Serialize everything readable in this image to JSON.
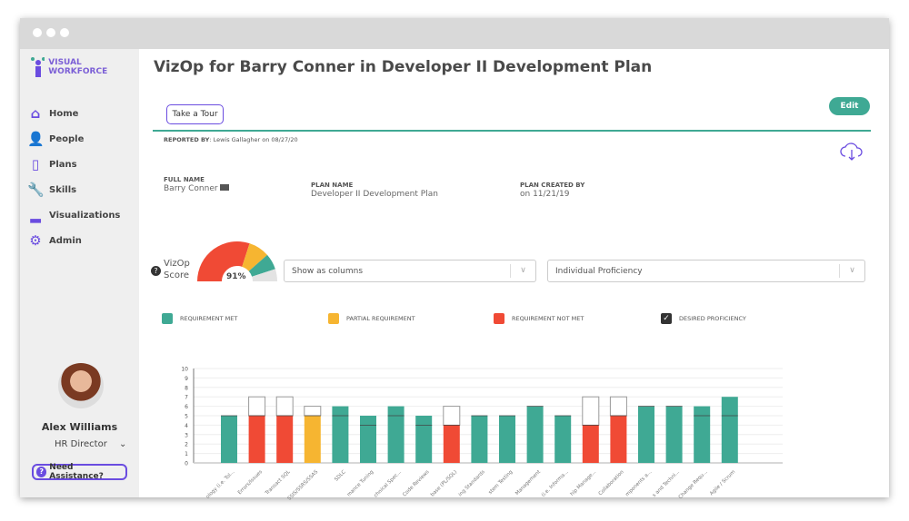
{
  "app": {
    "brand": "VISUAL WORKFORCE"
  },
  "sidebar": {
    "items": [
      {
        "label": "Home",
        "icon": "home-icon"
      },
      {
        "label": "People",
        "icon": "people-icon"
      },
      {
        "label": "Plans",
        "icon": "clipboard-icon"
      },
      {
        "label": "Skills",
        "icon": "wrench-icon"
      },
      {
        "label": "Visualizations",
        "icon": "bar-chart-icon"
      },
      {
        "label": "Admin",
        "icon": "gear-icon"
      }
    ],
    "user": {
      "name": "Alex Williams",
      "role": "HR Director"
    },
    "help_label": "Need Assistance?"
  },
  "header": {
    "title": "VizOp for Barry Conner in Developer II Development Plan",
    "tour_label": "Take a Tour",
    "edit_label": "Edit"
  },
  "report": {
    "reported_by_label": "REPORTED BY",
    "reported_by_value": "Lewis Gallagher on 08/27/20",
    "full_name_label": "FULL NAME",
    "full_name": "Barry Conner",
    "plan_name_label": "PLAN NAME",
    "plan_name": "Developer II Development Plan",
    "plan_created_label": "PLAN CREATED BY",
    "plan_created": "on 11/21/19"
  },
  "score": {
    "label_line1": "VizOp",
    "label_line2": "Score",
    "value": "91%",
    "segments": [
      {
        "color": "#f04a35",
        "pct": 60
      },
      {
        "color": "#f6b531",
        "pct": 17
      },
      {
        "color": "#3fa994",
        "pct": 13
      },
      {
        "color": "#e3e3e3",
        "pct": 10
      }
    ]
  },
  "controls": {
    "view_select": "Show as columns",
    "mode_select": "Individual Proficiency"
  },
  "legend": [
    {
      "label": "REQUIREMENT MET",
      "color": "#3fa994"
    },
    {
      "label": "PARTIAL REQUIREMENT",
      "color": "#f6b531"
    },
    {
      "label": "REQUIREMENT NOT MET",
      "color": "#f04a35"
    },
    {
      "label": "DESIRED PROFICIENCY",
      "color": "#333333",
      "checked": true
    }
  ],
  "chart_data": {
    "type": "bar",
    "ylim": [
      0,
      10
    ],
    "yticks": [
      0,
      1,
      2,
      3,
      4,
      5,
      6,
      7,
      8,
      9,
      10
    ],
    "grid": true,
    "categories": [
      "ology (i.e. Tol...",
      "Errors/Issues",
      "Transact SQL",
      "SSIS/SSRS/SSAS",
      "SDLC",
      "mance Tuning",
      "chnical Spec...",
      "Code Reviews",
      "base (PL/SQL)",
      "ing Standards",
      "stem Testing",
      "Management",
      "(i.e. Informa...",
      "hip Manage...",
      "Collaboration",
      "mponents a...",
      "s and Techni...",
      "Change Requ...",
      "Agile / Scrum"
    ],
    "proficiency": [
      5,
      5,
      5,
      5,
      6,
      5,
      6,
      5,
      4,
      5,
      5,
      6,
      5,
      4,
      5,
      6,
      6,
      6,
      7
    ],
    "desired": [
      5,
      7,
      7,
      6,
      5,
      4,
      5,
      4,
      6,
      5,
      5,
      6,
      5,
      7,
      7,
      6,
      6,
      5,
      5
    ],
    "status": [
      "met",
      "not_met",
      "not_met",
      "partial",
      "met",
      "met",
      "met",
      "met",
      "not_met",
      "met",
      "met",
      "met",
      "met",
      "not_met",
      "not_met",
      "met",
      "met",
      "met",
      "met"
    ]
  }
}
